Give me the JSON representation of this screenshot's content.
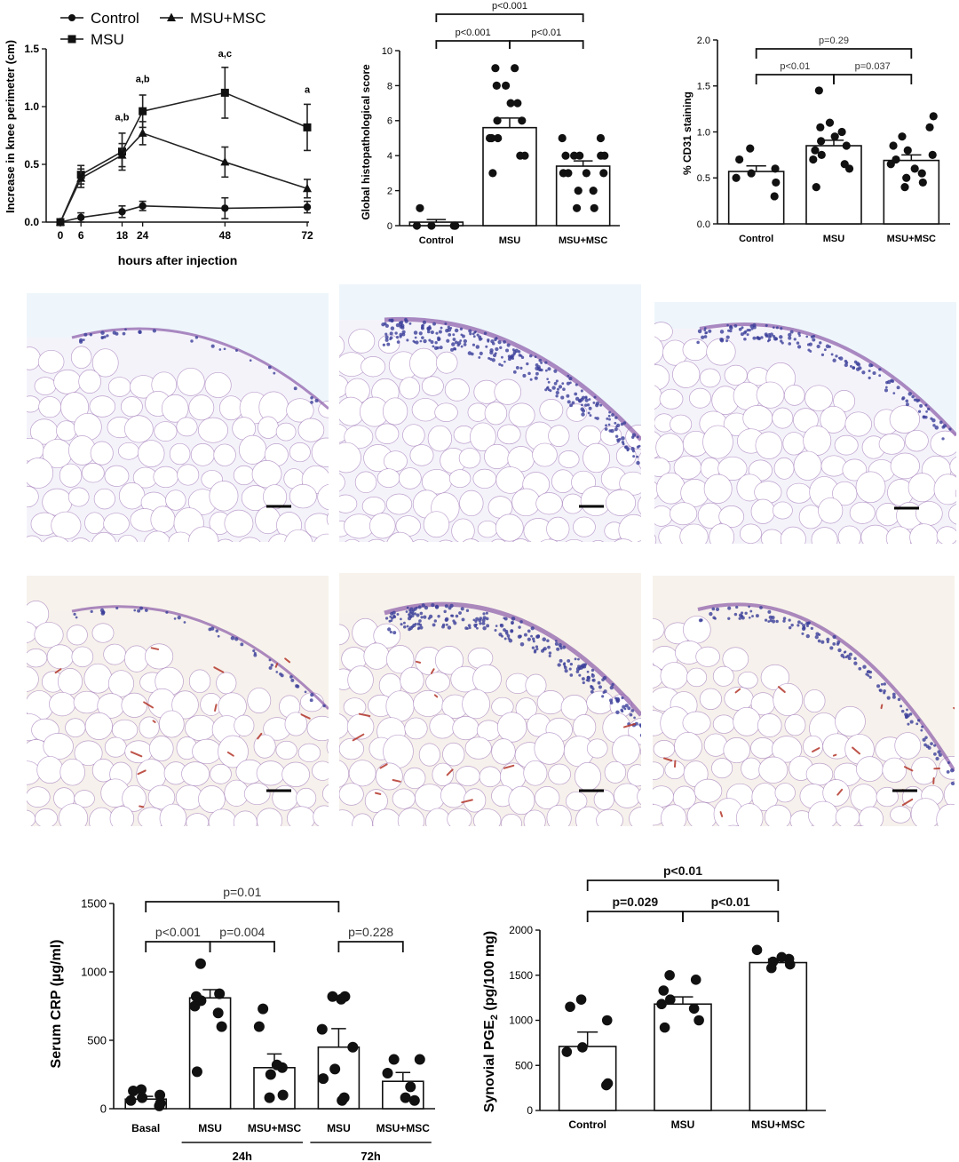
{
  "chart_data": [
    {
      "id": "knee",
      "type": "line",
      "xlabel": "hours after injection",
      "ylabel": "Increase in knee perimeter (cm)",
      "x": [
        0,
        6,
        18,
        24,
        48,
        72
      ],
      "x_ticks": [
        "0",
        "6",
        "18",
        "24",
        "48",
        "72"
      ],
      "y_ticks": [
        "0.0",
        "0.5",
        "1.0",
        "1.5"
      ],
      "ylim": [
        0,
        1.5
      ],
      "xlim": [
        0,
        72
      ],
      "series": [
        {
          "name": "Control",
          "marker": "circle",
          "values": [
            0,
            0.04,
            0.09,
            0.14,
            0.12,
            0.13
          ],
          "err": [
            0,
            0.04,
            0.05,
            0.04,
            0.09,
            0.05
          ]
        },
        {
          "name": "MSU",
          "marker": "square",
          "values": [
            0,
            0.41,
            0.61,
            0.96,
            1.12,
            0.82
          ],
          "err": [
            0,
            0.08,
            0.16,
            0.14,
            0.22,
            0.2
          ]
        },
        {
          "name": "MSU+MSC",
          "marker": "triangle",
          "values": [
            0,
            0.38,
            0.58,
            0.77,
            0.52,
            0.29
          ],
          "err": [
            0,
            0.08,
            0.1,
            0.1,
            0.13,
            0.08
          ]
        }
      ],
      "annotations": [
        {
          "x": 18,
          "y": 0.88,
          "text": "a,b"
        },
        {
          "x": 24,
          "y": 1.21,
          "text": "a,b"
        },
        {
          "x": 48,
          "y": 1.43,
          "text": "a,c"
        },
        {
          "x": 72,
          "y": 1.12,
          "text": "a"
        }
      ],
      "legend": [
        "Control",
        "MSU+MSC",
        "MSU"
      ]
    },
    {
      "id": "histo",
      "type": "bar",
      "ylabel": "Global histopathological score",
      "categories": [
        "Control",
        "MSU",
        "MSU+MSC"
      ],
      "values": [
        0.2,
        5.6,
        3.4
      ],
      "sem": [
        0.15,
        0.55,
        0.3
      ],
      "ylim": [
        0,
        10
      ],
      "y_ticks": [
        "0",
        "2",
        "4",
        "6",
        "8",
        "10"
      ],
      "points": [
        [
          0,
          0,
          0,
          0,
          0,
          1
        ],
        [
          3,
          4,
          4,
          5,
          5,
          5,
          6,
          6,
          7,
          7,
          8,
          8,
          9,
          9
        ],
        [
          1,
          1,
          2,
          2,
          3,
          3,
          3,
          3,
          4,
          4,
          4,
          4,
          4,
          5,
          5
        ]
      ],
      "comparisons": [
        {
          "from": 0,
          "to": 1,
          "level": 1,
          "label": "p<0.001"
        },
        {
          "from": 1,
          "to": 2,
          "level": 1,
          "label": "p<0.01"
        },
        {
          "from": 0,
          "to": 2,
          "level": 2,
          "label": "p<0.001"
        }
      ]
    },
    {
      "id": "cd31",
      "type": "bar",
      "ylabel": "% CD31 staining",
      "categories": [
        "Control",
        "MSU",
        "MSU+MSC"
      ],
      "values": [
        0.57,
        0.85,
        0.69
      ],
      "sem": [
        0.06,
        0.06,
        0.06
      ],
      "ylim": [
        0,
        2.0
      ],
      "y_ticks": [
        "0.0",
        "0.5",
        "1.0",
        "1.5",
        "2.0"
      ],
      "points": [
        [
          0.3,
          0.45,
          0.5,
          0.55,
          0.6,
          0.7,
          0.82
        ],
        [
          0.4,
          0.6,
          0.65,
          0.7,
          0.75,
          0.8,
          0.85,
          0.9,
          0.95,
          1.0,
          1.05,
          1.1,
          1.45
        ],
        [
          0.4,
          0.45,
          0.5,
          0.55,
          0.6,
          0.65,
          0.7,
          0.75,
          0.8,
          0.85,
          0.95,
          1.05,
          1.17
        ]
      ],
      "comparisons": [
        {
          "from": 0,
          "to": 1,
          "level": 1,
          "label": "p<0.01"
        },
        {
          "from": 1,
          "to": 2,
          "level": 1,
          "label": "p=0.037"
        },
        {
          "from": 0,
          "to": 2,
          "level": 2,
          "label": "p=0.29"
        }
      ]
    },
    {
      "id": "crp",
      "type": "bar",
      "ylabel": "Serum CRP (µg/ml)",
      "categories": [
        "Basal",
        "MSU",
        "MSU+MSC",
        "MSU",
        "MSU+MSC"
      ],
      "group_labels": [
        {
          "text": "24h",
          "from": 1,
          "to": 2
        },
        {
          "text": "72h",
          "from": 3,
          "to": 4
        }
      ],
      "values": [
        70,
        810,
        300,
        450,
        200
      ],
      "sem": [
        20,
        60,
        100,
        135,
        65
      ],
      "ylim": [
        0,
        1500
      ],
      "y_ticks": [
        "0",
        "500",
        "1000",
        "1500"
      ],
      "points": [
        [
          20,
          40,
          60,
          80,
          100,
          130,
          140
        ],
        [
          270,
          600,
          700,
          750,
          790,
          820,
          840,
          1060
        ],
        [
          80,
          100,
          250,
          300,
          320,
          600,
          730
        ],
        [
          60,
          80,
          220,
          290,
          450,
          580,
          800,
          820,
          820
        ],
        [
          60,
          80,
          160,
          260,
          360,
          360
        ]
      ],
      "comparisons": [
        {
          "from": 0,
          "to": 1,
          "level": 1,
          "label": "p<0.001"
        },
        {
          "from": 1,
          "to": 2,
          "level": 1,
          "label": "p=0.004"
        },
        {
          "from": 3,
          "to": 4,
          "level": 1,
          "label": "p=0.228"
        },
        {
          "from": 0,
          "to": 3,
          "level": 2,
          "label": "p=0.01"
        }
      ]
    },
    {
      "id": "pge",
      "type": "bar",
      "ylabel": "Synovial PGE",
      "ylabel_sub": "2",
      "ylabel_unit": "(pg/100 mg)",
      "categories": [
        "Control",
        "MSU",
        "MSU+MSC"
      ],
      "values": [
        710,
        1180,
        1640
      ],
      "sem": [
        160,
        80,
        40
      ],
      "ylim": [
        0,
        2000
      ],
      "y_ticks": [
        "0",
        "500",
        "1000",
        "1500",
        "2000"
      ],
      "points": [
        [
          280,
          300,
          650,
          700,
          1000,
          1150,
          1230
        ],
        [
          920,
          1000,
          1130,
          1180,
          1230,
          1330,
          1450,
          1500
        ],
        [
          1580,
          1620,
          1650,
          1680,
          1700,
          1780
        ]
      ],
      "comparisons": [
        {
          "from": 0,
          "to": 1,
          "level": 1,
          "label": "p=0.029"
        },
        {
          "from": 1,
          "to": 2,
          "level": 1,
          "label": "p<0.01"
        },
        {
          "from": 0,
          "to": 2,
          "level": 2,
          "label": "p<0.01"
        }
      ]
    }
  ],
  "images": {
    "row1": [
      "he-control-tissue",
      "he-msu-tissue",
      "he-msu-msc-tissue"
    ],
    "row2": [
      "cd31-control-tissue",
      "cd31-msu-tissue",
      "cd31-msu-msc-tissue"
    ]
  },
  "colors": {
    "ink": "#111111",
    "he_bg": "#f5f3fa",
    "he_stain": "#8a5aa8",
    "cd31_bg": "#f6f1ec",
    "cd31_stain": "#b3362a",
    "nucleus": "#3b3e9a"
  }
}
